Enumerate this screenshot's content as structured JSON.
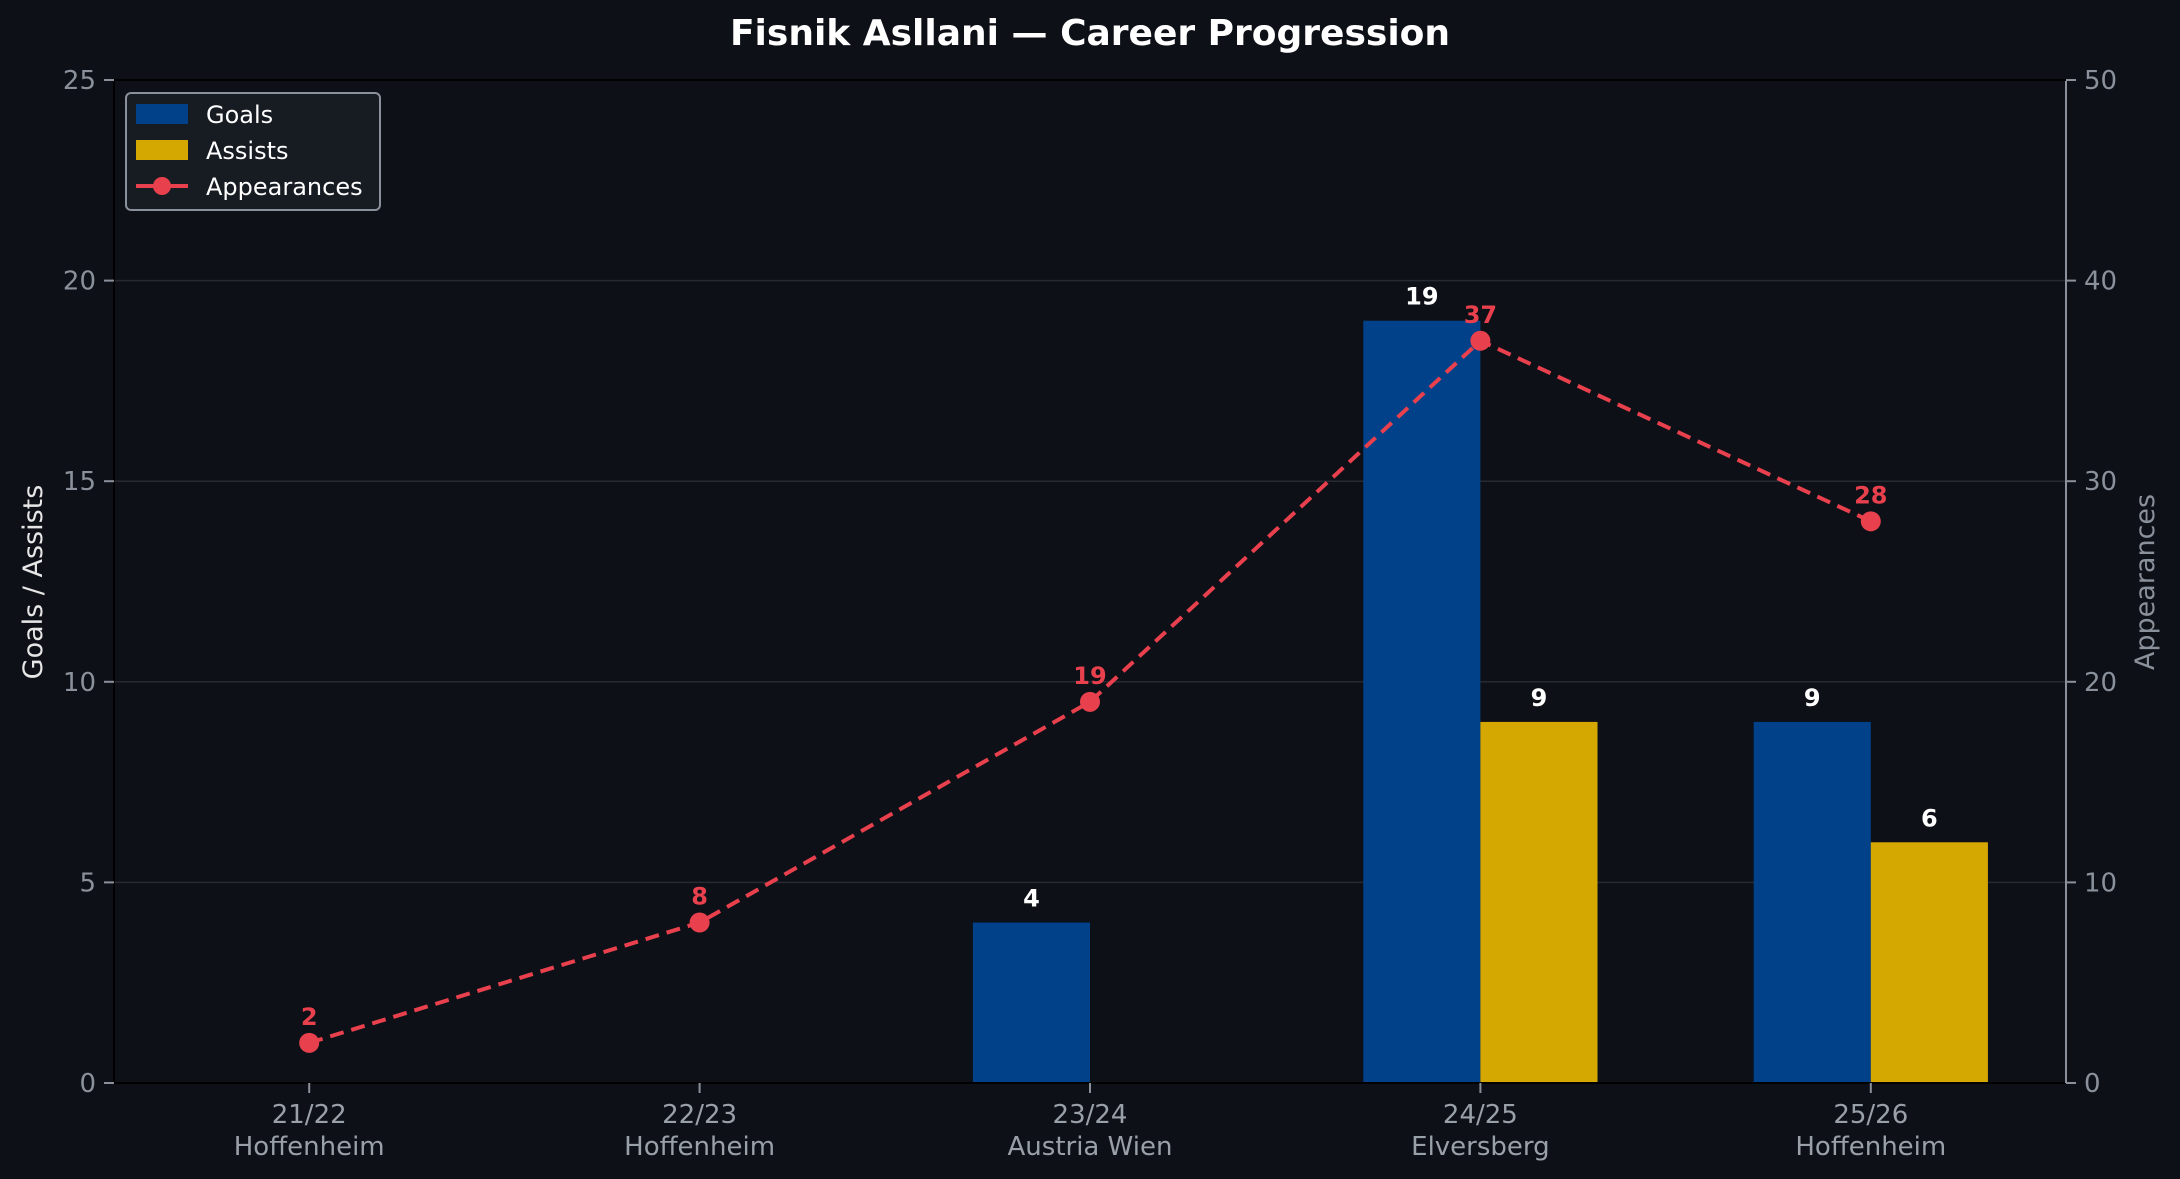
{
  "chart_data": {
    "type": "bar",
    "title": "Fisnik Asllani — Career Progression",
    "seasons": [
      "21/22",
      "22/23",
      "23/24",
      "24/25",
      "25/26"
    ],
    "clubs": [
      "Hoffenheim",
      "Hoffenheim",
      "Austria Wien",
      "Elversberg",
      "Hoffenheim"
    ],
    "series": [
      {
        "name": "Goals",
        "type": "bar",
        "axis": "left",
        "color": "#00418a",
        "values": [
          0,
          0,
          4,
          19,
          9
        ]
      },
      {
        "name": "Assists",
        "type": "bar",
        "axis": "left",
        "color": "#d4a800",
        "values": [
          0,
          0,
          0,
          9,
          6
        ]
      },
      {
        "name": "Appearances",
        "type": "line",
        "axis": "right",
        "style": "dashed",
        "color": "#e8404d",
        "values": [
          2,
          8,
          19,
          37,
          28
        ]
      }
    ],
    "ylabel": "Goals / Assists",
    "y2label": "Appearances",
    "ylim": [
      0,
      25
    ],
    "y2lim": [
      0,
      50
    ],
    "yticks": [
      0,
      5,
      10,
      15,
      20,
      25
    ],
    "y2ticks": [
      0,
      10,
      20,
      30,
      40,
      50
    ],
    "grid": true,
    "legend": "top-left"
  },
  "colors": {
    "background": "#0d1017",
    "grid": "#262a31",
    "axis": "#8b919a",
    "bar_label": "#ffffff"
  }
}
